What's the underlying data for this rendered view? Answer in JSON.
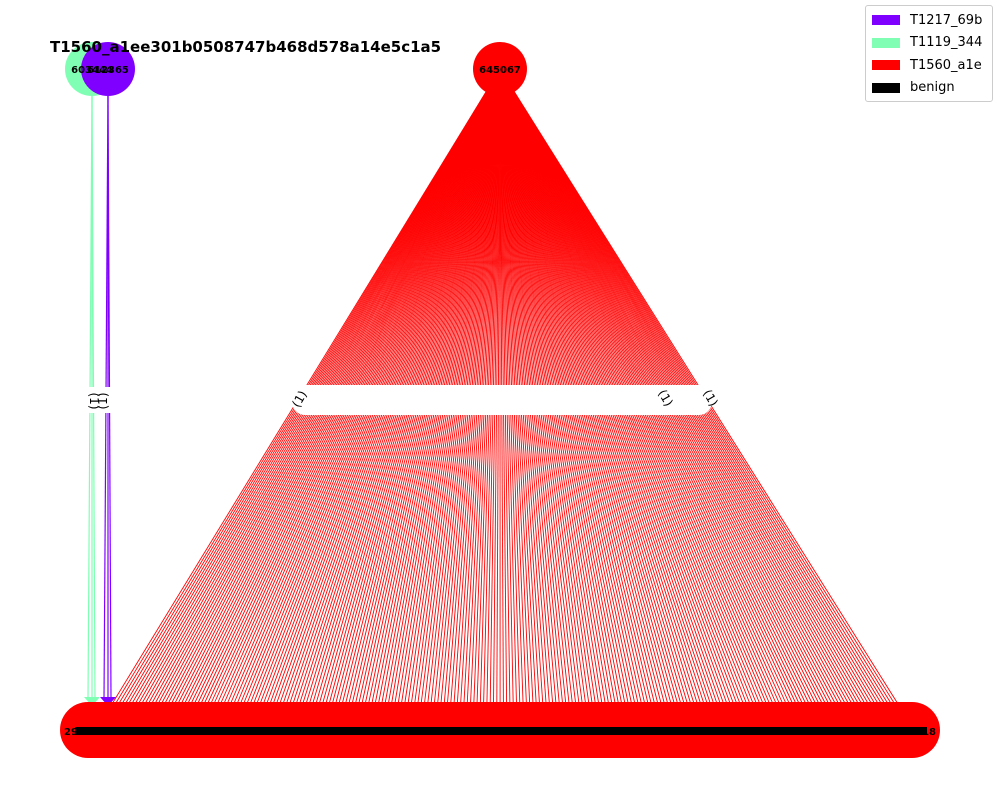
{
  "title": "T1560_a1ee301b0508747b468d578a14e5c1a5",
  "legend": {
    "items": [
      {
        "label": "T1217_69b",
        "color": "#8000ff"
      },
      {
        "label": "T1119_344",
        "color": "#80ffb4"
      },
      {
        "label": "T1560_a1e",
        "color": "#ff0000"
      },
      {
        "label": "benign",
        "color": "#000000"
      }
    ]
  },
  "nodes": {
    "overlap_label_a": "603444",
    "overlap_label_b": "612365",
    "hub_label": "645067",
    "bottom_left_label": "296",
    "bottom_right_label": "318"
  },
  "edge_label": "(1)",
  "colors": {
    "red": "#ff0000",
    "green": "#80ffb4",
    "purple": "#8000ff",
    "black": "#000000"
  }
}
